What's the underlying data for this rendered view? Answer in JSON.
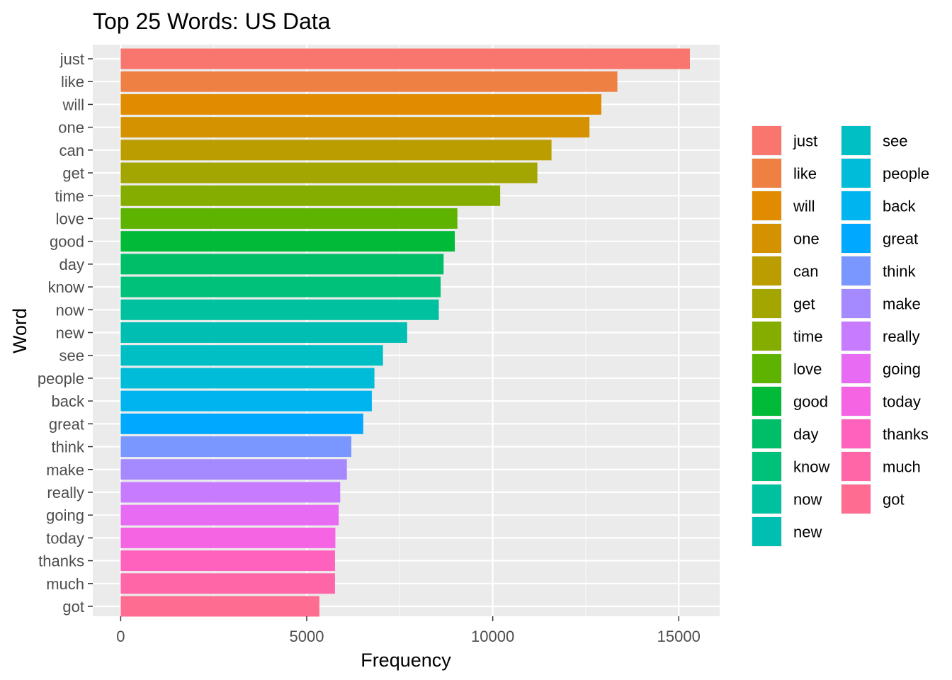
{
  "chart_data": {
    "type": "bar",
    "orientation": "horizontal",
    "title": "Top 25 Words: US Data",
    "xlabel": "Frequency",
    "ylabel": "Word",
    "xlim": [
      -750,
      16100
    ],
    "x_ticks": [
      0,
      5000,
      10000,
      15000
    ],
    "x_tick_labels": [
      "0",
      "5000",
      "10000",
      "15000"
    ],
    "grid": true,
    "legend_position": "right",
    "categories": [
      "just",
      "like",
      "will",
      "one",
      "can",
      "get",
      "time",
      "love",
      "good",
      "day",
      "know",
      "now",
      "new",
      "see",
      "people",
      "back",
      "great",
      "think",
      "make",
      "really",
      "going",
      "today",
      "thanks",
      "much",
      "got"
    ],
    "values": [
      15300,
      13350,
      12920,
      12600,
      11580,
      11200,
      10200,
      9050,
      8980,
      8680,
      8600,
      8550,
      7700,
      7050,
      6820,
      6750,
      6520,
      6200,
      6080,
      5900,
      5860,
      5770,
      5760,
      5760,
      5340
    ],
    "colors": [
      "#F8766D",
      "#EE8044",
      "#E08B00",
      "#D49200",
      "#BB9D00",
      "#A3A500",
      "#85AD00",
      "#5EB300",
      "#00BA38",
      "#00BE67",
      "#00C17A",
      "#00C19F",
      "#00BFB2",
      "#00BFC4",
      "#00BCD8",
      "#00B4F0",
      "#00A9FF",
      "#7997FF",
      "#A58AFF",
      "#C77CFF",
      "#E76BF3",
      "#F564E3",
      "#FF62BC",
      "#FF66A8",
      "#FF6C91"
    ]
  }
}
